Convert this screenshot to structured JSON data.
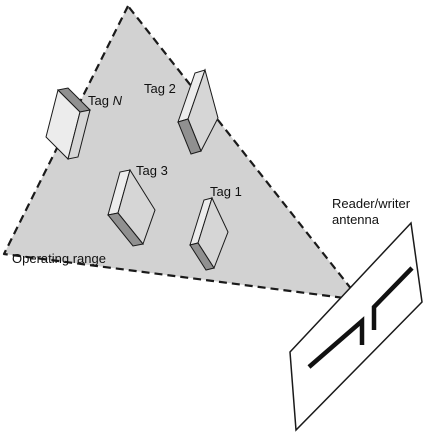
{
  "colors": {
    "range_fill": "#d2d2d2",
    "outline": "#1a1a1a",
    "tag_top": "#ececec",
    "tag_front": "#d6d6d6",
    "tag_side": "#909090",
    "antenna_panel": "#ffffff"
  },
  "labels": {
    "tag_n_prefix": "Tag ",
    "tag_n_suffix": "N",
    "tag_2": "Tag 2",
    "tag_3": "Tag 3",
    "tag_1": "Tag 1",
    "reader_line1": "Reader/writer",
    "reader_line2": "antenna",
    "operating_range": "Operating range"
  }
}
